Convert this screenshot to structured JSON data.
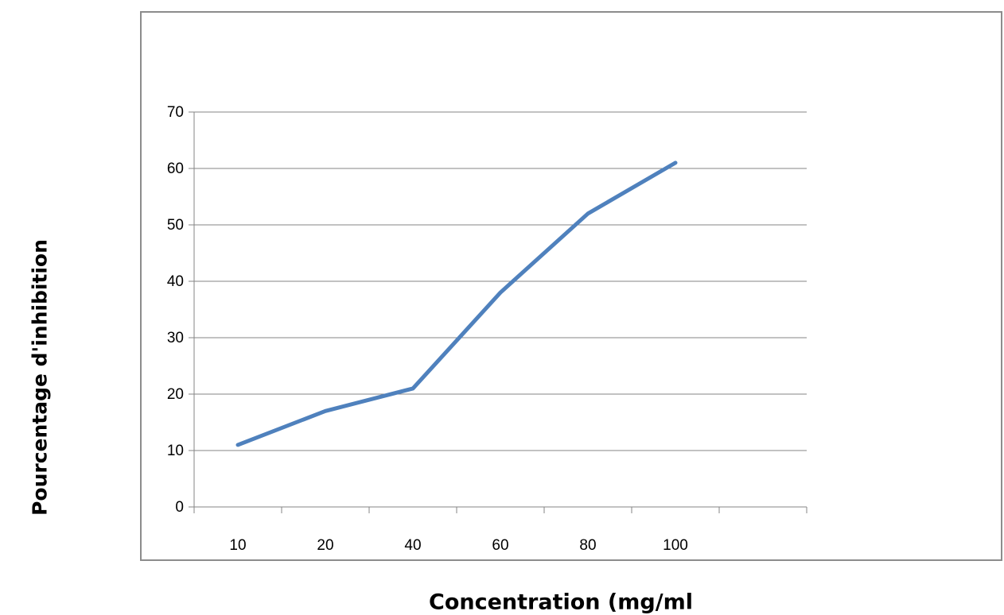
{
  "chart_data": {
    "type": "line",
    "title": "",
    "xlabel": "Concentration (mg/ml",
    "ylabel": "Pourcentage d'inhibition",
    "categories": [
      "10",
      "20",
      "40",
      "60",
      "80",
      "100"
    ],
    "series": [
      {
        "values": [
          11,
          17,
          21,
          38,
          52,
          61
        ]
      }
    ],
    "ylim": [
      0,
      70
    ],
    "yticks": [
      "0",
      "10",
      "20",
      "30",
      "40",
      "50",
      "60",
      "70"
    ],
    "grid": true,
    "legend": "none",
    "line_color": "#4f81bd",
    "grid_color": "#868686"
  }
}
